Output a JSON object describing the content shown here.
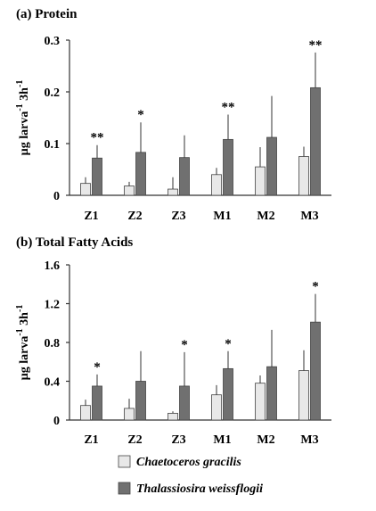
{
  "chart_data": [
    {
      "type": "bar",
      "title": "(a)  Protein",
      "ylabel": "µg larva-1 3h-1",
      "ylim": [
        0,
        0.3
      ],
      "yticks": [
        "0",
        "0.1",
        "0.2",
        "0.3"
      ],
      "categories": [
        "Z1",
        "Z2",
        "Z3",
        "M1",
        "M2",
        "M3"
      ],
      "series": [
        {
          "name": "Chaetoceros gracilis",
          "values": [
            0.023,
            0.018,
            0.012,
            0.04,
            0.055,
            0.075
          ],
          "errors": [
            0.012,
            0.008,
            0.023,
            0.013,
            0.038,
            0.019
          ],
          "color": "#e8e8e8"
        },
        {
          "name": "Thalassiosira weissflogii",
          "values": [
            0.072,
            0.083,
            0.073,
            0.108,
            0.112,
            0.208
          ],
          "errors": [
            0.025,
            0.058,
            0.043,
            0.048,
            0.08,
            0.068
          ],
          "color": "#707070"
        }
      ],
      "significance": [
        "**",
        "*",
        "",
        "**",
        "",
        "**"
      ],
      "grid": false
    },
    {
      "type": "bar",
      "title": "(b)  Total Fatty Acids",
      "ylabel": "µg larva-1 3h-1",
      "ylim": [
        0,
        1.6
      ],
      "yticks": [
        "0",
        "0.4",
        "0.8",
        "1.2",
        "1.6"
      ],
      "categories": [
        "Z1",
        "Z2",
        "Z3",
        "M1",
        "M2",
        "M3"
      ],
      "series": [
        {
          "name": "Chaetoceros gracilis",
          "values": [
            0.15,
            0.12,
            0.07,
            0.26,
            0.38,
            0.51
          ],
          "errors": [
            0.06,
            0.1,
            0.02,
            0.1,
            0.08,
            0.21
          ],
          "color": "#e8e8e8"
        },
        {
          "name": "Thalassiosira weissflogii",
          "values": [
            0.35,
            0.4,
            0.35,
            0.53,
            0.55,
            1.01
          ],
          "errors": [
            0.12,
            0.31,
            0.35,
            0.18,
            0.38,
            0.29
          ],
          "color": "#707070"
        }
      ],
      "significance": [
        "*",
        "",
        "*",
        "*",
        "",
        "*"
      ],
      "grid": false
    }
  ],
  "legend": {
    "items": [
      {
        "label": "Chaetoceros gracilis",
        "color": "#e8e8e8"
      },
      {
        "label": "Thalassiosira weissflogii",
        "color": "#707070"
      }
    ]
  }
}
